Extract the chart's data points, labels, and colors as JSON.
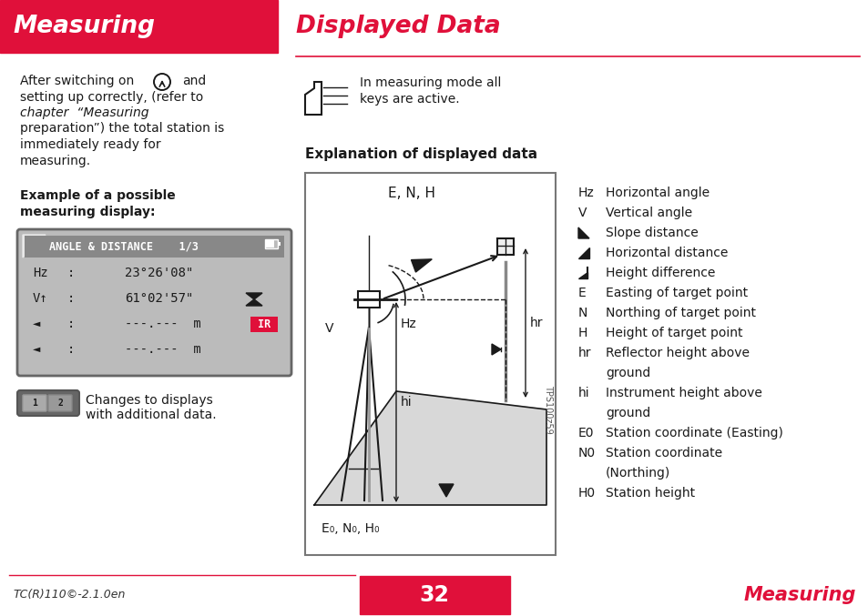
{
  "page_bg": "#ffffff",
  "red": "#e0103a",
  "black": "#1a1a1a",
  "white": "#ffffff",
  "gray_light": "#cccccc",
  "gray_mid": "#aaaaaa",
  "header_text": "Measuring",
  "header_title": "Displayed Data",
  "footer_number": "32",
  "footer_left": "TC(R)110©-2.1.0en",
  "footer_right": "Measuring",
  "body_lines": [
    "After switching on",
    "and",
    "setting up correctly, (refer to",
    "chapter  \"Measuring",
    "preparation\") the total station is",
    "immediately ready for",
    "measuring."
  ],
  "note_line1": "In measuring mode all",
  "note_line2": "keys are active.",
  "expl_heading": "Explanation of displayed data",
  "bold_heading": "Example of a possible\nmeasuring display:",
  "disp_title": "ANGLE & DISTANCE    1/3",
  "disp_row1_lbl": "Hz",
  "disp_row1_val": "23°26'08\"",
  "disp_row2_lbl": "V↑",
  "disp_row2_val": "61°02'57\"",
  "disp_row3_val": "---.---  m",
  "disp_row4_val": "---.---  m",
  "changes_text_1": "Changes to displays",
  "changes_text_2": "with additional data.",
  "diag_label_top": "E, N, H",
  "diag_label_bot": "E₀, N₀, H₀",
  "diag_label_hr": "hr",
  "diag_label_hi": "hi",
  "diag_label_Hz": "Hz",
  "diag_label_V": "V",
  "diag_tps": "TPS100z59",
  "legend": [
    [
      "Hz",
      "Horizontal angle"
    ],
    [
      "V",
      "Vertical angle"
    ],
    [
      "slope",
      "Slope distance"
    ],
    [
      "horiz",
      "Horizontal distance"
    ],
    [
      "height",
      "Height difference"
    ],
    [
      "E",
      "Easting of target point"
    ],
    [
      "N",
      "Northing of target point"
    ],
    [
      "H",
      "Height of target point"
    ],
    [
      "hr",
      "Reflector height above\nground"
    ],
    [
      "hi",
      "Instrument height above\nground"
    ],
    [
      "E0",
      "Station coordinate (Easting)"
    ],
    [
      "N0",
      "Station coordinate\n(Northing)"
    ],
    [
      "H0",
      "Station height"
    ]
  ]
}
